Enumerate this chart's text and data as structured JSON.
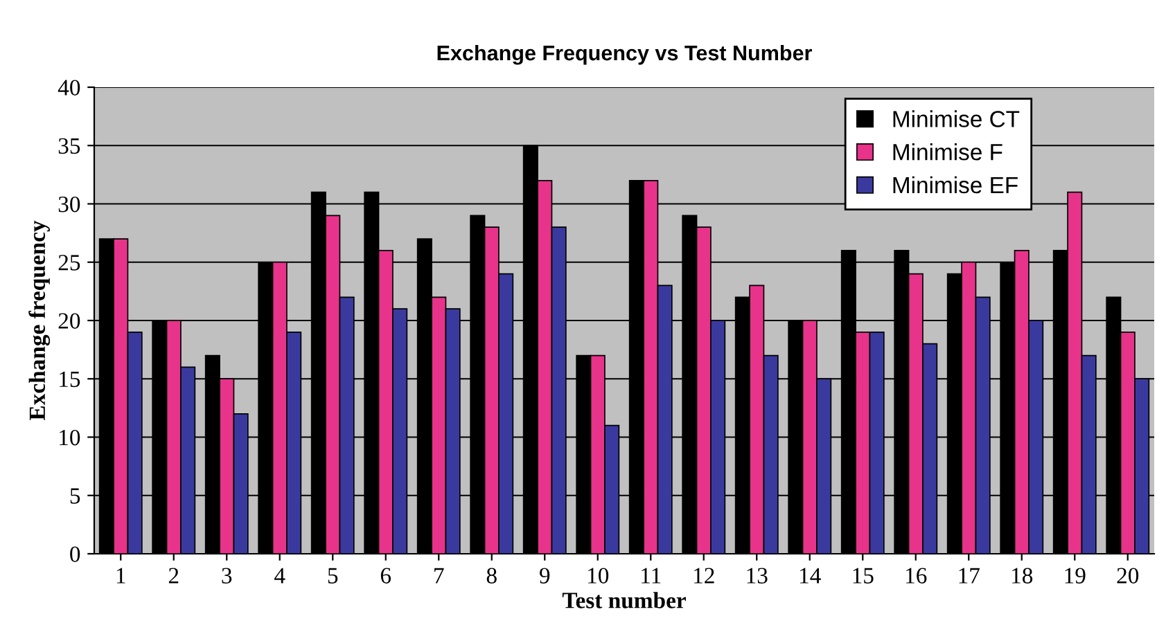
{
  "chart_data": {
    "type": "bar",
    "title": "Exchange Frequency vs Test Number",
    "xlabel": "Test number",
    "ylabel": "Exchange frequency",
    "categories": [
      "1",
      "2",
      "3",
      "4",
      "5",
      "6",
      "7",
      "8",
      "9",
      "10",
      "11",
      "12",
      "13",
      "14",
      "15",
      "16",
      "17",
      "18",
      "19",
      "20"
    ],
    "series": [
      {
        "name": "Minimise CT",
        "color": "#000000",
        "values": [
          27,
          20,
          17,
          25,
          31,
          31,
          27,
          29,
          35,
          17,
          32,
          29,
          22,
          20,
          26,
          26,
          24,
          25,
          26,
          22
        ]
      },
      {
        "name": "Minimise F",
        "color": "#e8338a",
        "values": [
          27,
          20,
          15,
          25,
          29,
          26,
          22,
          28,
          32,
          17,
          32,
          28,
          23,
          20,
          19,
          24,
          25,
          26,
          31,
          19
        ]
      },
      {
        "name": "Minimise EF",
        "color": "#3a3a9e",
        "values": [
          19,
          16,
          12,
          19,
          22,
          21,
          21,
          24,
          28,
          11,
          23,
          20,
          17,
          15,
          19,
          18,
          22,
          20,
          17,
          15
        ]
      }
    ],
    "ylim": [
      0,
      40
    ],
    "yticks": [
      0,
      5,
      10,
      15,
      20,
      25,
      30,
      35,
      40
    ],
    "grid": "y",
    "legend": "top right"
  }
}
